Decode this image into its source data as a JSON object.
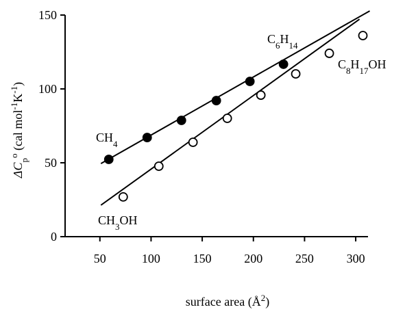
{
  "chart_data": {
    "type": "scatter",
    "x_label": [
      "surface area  (Å",
      "2",
      ")"
    ],
    "y_label": [
      "ΔC",
      "p",
      "o",
      " (cal mol",
      "-1",
      "K",
      "-1",
      ")"
    ],
    "xlim": [
      16,
      312
    ],
    "ylim": [
      0,
      150
    ],
    "xticks": [
      50,
      100,
      150,
      200,
      250,
      300
    ],
    "yticks": [
      0,
      50,
      100,
      150
    ],
    "series": [
      {
        "marker": "filled",
        "color": "#000000",
        "x": [
          58.7,
          96.2,
          129.7,
          163.8,
          196.6,
          229.4
        ],
        "values": [
          52.3,
          67.1,
          78.7,
          92.1,
          105.1,
          116.7
        ],
        "line_x": [
          51,
          313.7
        ],
        "line_y": [
          49.5,
          152.8
        ]
      },
      {
        "marker": "open",
        "color": "#000000",
        "x": [
          72.8,
          107.6,
          141,
          174.5,
          207.3,
          241.4,
          274.2,
          307
        ],
        "values": [
          26.9,
          47.7,
          63.9,
          80.1,
          95.8,
          110.2,
          124.1,
          136.1
        ],
        "line_x": [
          51,
          303.7
        ],
        "line_y": [
          21.3,
          147.2
        ]
      }
    ],
    "annotations": [
      {
        "parts": [
          "CH",
          "4"
        ]
      },
      {
        "parts": [
          "C",
          "6",
          "H",
          "14"
        ]
      },
      {
        "parts": [
          "C",
          "8",
          "H",
          "17",
          "OH"
        ]
      },
      {
        "parts": [
          "CH",
          "3",
          "OH"
        ]
      }
    ]
  }
}
